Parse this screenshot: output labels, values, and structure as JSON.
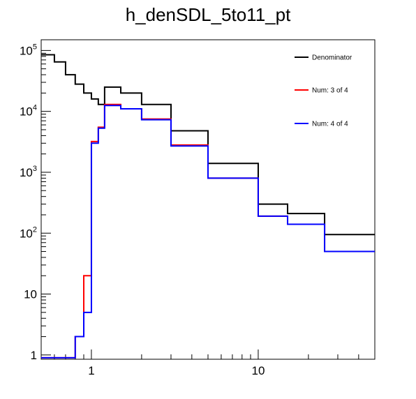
{
  "chart_data": {
    "type": "step-histogram",
    "title": "h_denSDL_5to11_pt",
    "xlabel": "",
    "ylabel": "",
    "x_scale": "log",
    "y_scale": "log",
    "xlim": [
      0.5,
      50
    ],
    "ylim": [
      0.85,
      150000
    ],
    "grid": false,
    "legend_position": "top-right",
    "x_ticks": [
      {
        "value": 1,
        "label": "1"
      },
      {
        "value": 10,
        "label": "10"
      }
    ],
    "y_ticks": [
      {
        "value": 1,
        "base": "1",
        "exp": ""
      },
      {
        "value": 10,
        "base": "10",
        "exp": ""
      },
      {
        "value": 100,
        "base": "10",
        "exp": "2"
      },
      {
        "value": 1000,
        "base": "10",
        "exp": "3"
      },
      {
        "value": 10000,
        "base": "10",
        "exp": "4"
      },
      {
        "value": 100000,
        "base": "10",
        "exp": "5"
      }
    ],
    "bin_edges": [
      0.5,
      0.6,
      0.7,
      0.8,
      0.9,
      1.0,
      1.1,
      1.2,
      1.5,
      2.0,
      3.0,
      5.0,
      10.0,
      15.0,
      25.0,
      50.0
    ],
    "series": [
      {
        "name": "Denominator",
        "color": "#000000",
        "values": [
          85000,
          65000,
          40000,
          28000,
          20000,
          16000,
          13000,
          25000,
          20000,
          13000,
          4800,
          1400,
          300,
          210,
          95
        ]
      },
      {
        "name": "Num: 3 of 4",
        "color": "#ff0000",
        "values": [
          0.9,
          0.9,
          0.9,
          2,
          20,
          3200,
          5500,
          13000,
          11000,
          7500,
          2800,
          800,
          190,
          140,
          50
        ]
      },
      {
        "name": "Num: 4 of 4",
        "color": "#0000ff",
        "values": [
          0.9,
          0.9,
          0.9,
          2,
          5,
          3000,
          5300,
          12500,
          11000,
          7300,
          2700,
          800,
          190,
          140,
          50
        ]
      }
    ]
  }
}
